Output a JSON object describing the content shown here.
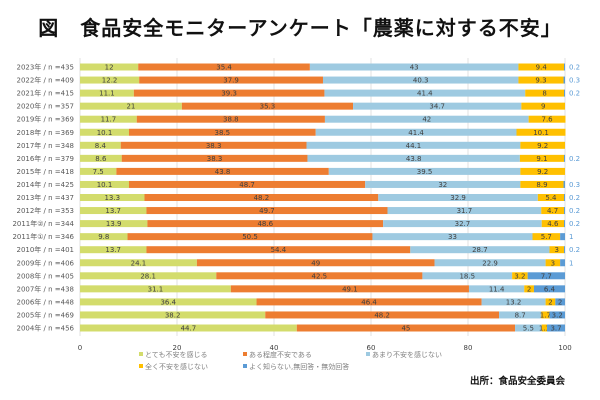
{
  "title": "図　食品安全モニターアンケート「農薬に対する不安」",
  "source": "出所：食品安全委員会",
  "chart_data": {
    "type": "bar",
    "orientation": "horizontal",
    "stacked": true,
    "title": "図　食品安全モニターアンケート「農薬に対する不安」",
    "xlabel": "",
    "ylabel": "",
    "xlim": [
      0,
      100
    ],
    "xticks": [
      0,
      20,
      40,
      60,
      80,
      100
    ],
    "grid": true,
    "legend_position": "bottom",
    "categories": [
      "2023年 / n =435",
      "2022年 / n =409",
      "2021年 / n =415",
      "2020年 / n =357",
      "2019年 / n =369",
      "2018年 / n =369",
      "2017年 / n =348",
      "2016年 / n =379",
      "2015年 / n =418",
      "2014年 / n =425",
      "2013年 / n =437",
      "2012年 / n =353",
      "2011年②/ n =344",
      "2011年①/ n =346",
      "2010年 / n =401",
      "2009年 / n =406",
      "2008年 / n =405",
      "2007年 / n =438",
      "2006年 / n =448",
      "2005年 / n =469",
      "2004年 / n =456"
    ],
    "series": [
      {
        "name": "とても不安を感じる",
        "color": "#d3dc6c",
        "values": [
          12,
          12.2,
          11.1,
          21,
          11.7,
          10.1,
          8.4,
          8.6,
          7.5,
          10.1,
          13.3,
          13.7,
          13.9,
          9.8,
          13.7,
          24.1,
          28.1,
          31.1,
          36.4,
          38.2,
          44.7
        ]
      },
      {
        "name": "ある程度不安である",
        "color": "#ed7d31",
        "values": [
          35.4,
          37.9,
          39.3,
          35.3,
          38.8,
          38.5,
          38.3,
          38.3,
          43.8,
          48.7,
          48.2,
          49.7,
          48.6,
          50.5,
          54.4,
          49,
          42.5,
          49.1,
          46.4,
          48.2,
          45
        ]
      },
      {
        "name": "あまり不安を感じない",
        "color": "#9ecae1",
        "values": [
          43,
          40.3,
          41.4,
          34.7,
          42,
          41.4,
          44.1,
          43.8,
          39.5,
          32,
          32.9,
          31.7,
          32.7,
          33,
          28.7,
          22.9,
          18.5,
          11.4,
          13.2,
          8.7,
          5.5
        ]
      },
      {
        "name": "全く不安を感じない",
        "color": "#ffc000",
        "values": [
          9.4,
          9.3,
          8,
          9,
          7.6,
          10.1,
          9.2,
          9.1,
          9.2,
          8.9,
          5.4,
          4.7,
          4.6,
          5.7,
          3,
          3,
          3.2,
          2,
          2,
          1.7,
          1.1
        ]
      },
      {
        "name": "よく知らない,無回答・無効回答",
        "color": "#5b9bd5",
        "values": [
          0.2,
          0.3,
          0.2,
          null,
          null,
          null,
          null,
          0.2,
          null,
          0.3,
          0.2,
          0.2,
          0.2,
          1,
          0.2,
          1,
          7.7,
          6.4,
          2,
          3.2,
          3.7
        ]
      }
    ]
  }
}
